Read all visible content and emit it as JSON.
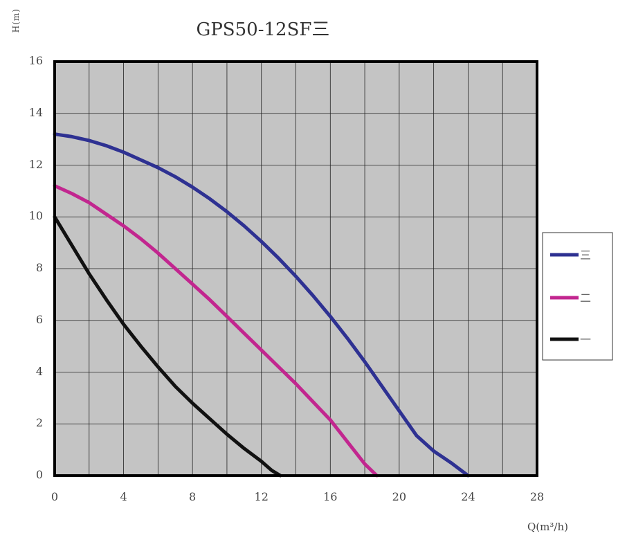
{
  "chart_data": {
    "type": "line",
    "title": "GPS50-12SF三",
    "xlabel": "Q(m³/h)",
    "ylabel": "H(m)",
    "xlim": [
      0,
      28
    ],
    "ylim": [
      0,
      16
    ],
    "x_ticks": [
      0,
      4,
      8,
      12,
      16,
      20,
      24,
      28
    ],
    "y_ticks": [
      0,
      2,
      4,
      6,
      8,
      10,
      12,
      14,
      16
    ],
    "grid": true,
    "legend_position": "right",
    "series": [
      {
        "name": "三",
        "color": "#2e3192",
        "points": [
          [
            0,
            13.2
          ],
          [
            1,
            13.1
          ],
          [
            2,
            12.95
          ],
          [
            3,
            12.75
          ],
          [
            4,
            12.5
          ],
          [
            5,
            12.2
          ],
          [
            6,
            11.9
          ],
          [
            7,
            11.55
          ],
          [
            8,
            11.15
          ],
          [
            9,
            10.7
          ],
          [
            10,
            10.2
          ],
          [
            11,
            9.65
          ],
          [
            12,
            9.05
          ],
          [
            13,
            8.4
          ],
          [
            14,
            7.7
          ],
          [
            15,
            6.95
          ],
          [
            16,
            6.15
          ],
          [
            17,
            5.3
          ],
          [
            18,
            4.4
          ],
          [
            19,
            3.45
          ],
          [
            20,
            2.5
          ],
          [
            21,
            1.55
          ],
          [
            22,
            0.95
          ],
          [
            23,
            0.5
          ],
          [
            24,
            0
          ]
        ]
      },
      {
        "name": "二",
        "color": "#c2268f",
        "points": [
          [
            0,
            11.2
          ],
          [
            1,
            10.9
          ],
          [
            2,
            10.55
          ],
          [
            3,
            10.1
          ],
          [
            4,
            9.65
          ],
          [
            5,
            9.15
          ],
          [
            6,
            8.6
          ],
          [
            7,
            8.0
          ],
          [
            8,
            7.4
          ],
          [
            9,
            6.8
          ],
          [
            10,
            6.15
          ],
          [
            11,
            5.5
          ],
          [
            12,
            4.85
          ],
          [
            13,
            4.2
          ],
          [
            14,
            3.55
          ],
          [
            15,
            2.85
          ],
          [
            16,
            2.15
          ],
          [
            17,
            1.3
          ],
          [
            18,
            0.45
          ],
          [
            18.7,
            0
          ]
        ]
      },
      {
        "name": "一",
        "color": "#111111",
        "points": [
          [
            0,
            10
          ],
          [
            1,
            8.9
          ],
          [
            2,
            7.8
          ],
          [
            3,
            6.8
          ],
          [
            4,
            5.85
          ],
          [
            5,
            5.0
          ],
          [
            6,
            4.2
          ],
          [
            7,
            3.45
          ],
          [
            8,
            2.8
          ],
          [
            9,
            2.2
          ],
          [
            10,
            1.6
          ],
          [
            11,
            1.05
          ],
          [
            12,
            0.55
          ],
          [
            12.6,
            0.2
          ],
          [
            13.1,
            0
          ]
        ]
      }
    ]
  }
}
